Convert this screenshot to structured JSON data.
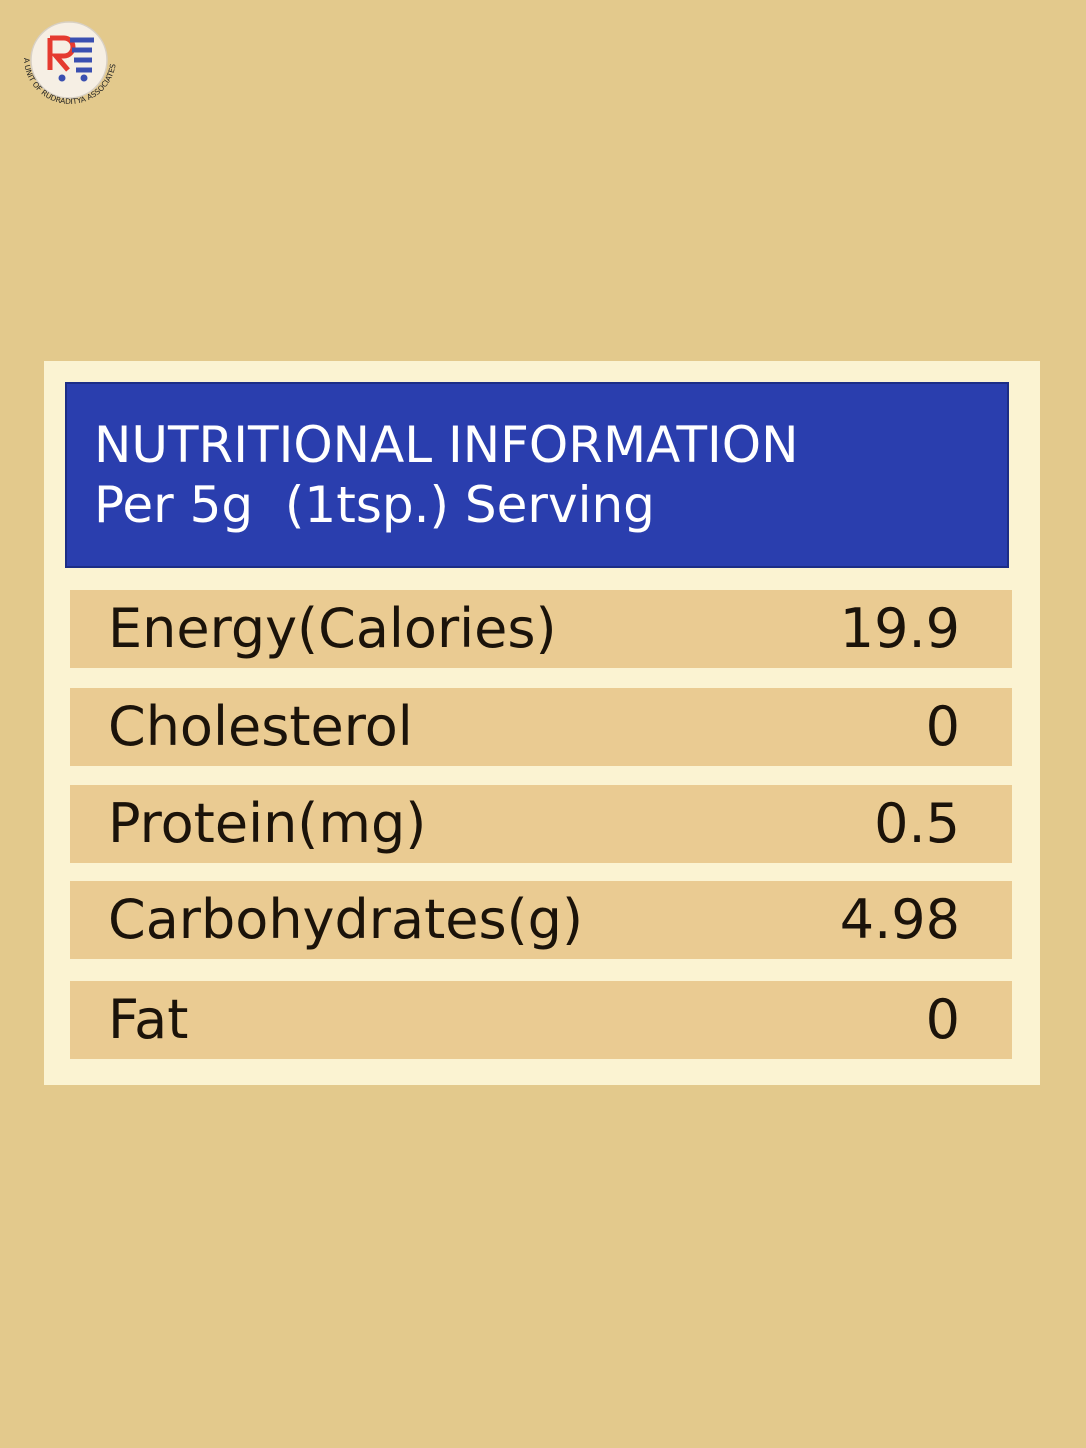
{
  "logo": {
    "text": "A UNIT OF RUDRADITYA ASSOCIATES"
  },
  "header": {
    "title": "NUTRITIONAL INFORMATION",
    "subtitle": "Per 5g  (1tsp.) Serving"
  },
  "table": {
    "rows": [
      [
        "Energy(Calories)",
        "19.9"
      ],
      [
        "Cholesterol",
        "0"
      ],
      [
        "Protein(mg)",
        "0.5"
      ],
      [
        "Carbohydrates(g)",
        "4.98"
      ],
      [
        "Fat",
        "0"
      ]
    ]
  }
}
